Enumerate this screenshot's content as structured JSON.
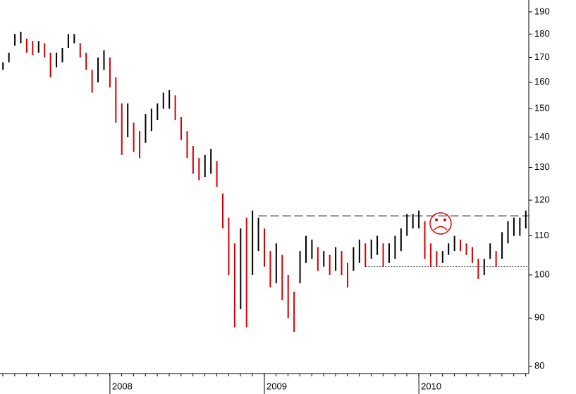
{
  "chart_data": {
    "type": "range",
    "scale": "log",
    "up_color": "#000000",
    "down_color": "#d40000",
    "categories": [
      null,
      null,
      null,
      null,
      null,
      null,
      null,
      null,
      null,
      null,
      null,
      null,
      null,
      null,
      null,
      null,
      null,
      null,
      "2008",
      null,
      null,
      null,
      null,
      null,
      null,
      null,
      null,
      null,
      null,
      null,
      null,
      null,
      null,
      null,
      null,
      null,
      null,
      null,
      null,
      null,
      null,
      null,
      null,
      null,
      "2009",
      null,
      null,
      null,
      null,
      null,
      null,
      null,
      null,
      null,
      null,
      null,
      null,
      null,
      null,
      null,
      null,
      null,
      null,
      null,
      null,
      null,
      null,
      null,
      null,
      null,
      "2010",
      null,
      null,
      null,
      null,
      null,
      null,
      null,
      null,
      null,
      null,
      null,
      null,
      null,
      null,
      null,
      null,
      null,
      null
    ],
    "highs": [
      168,
      172,
      180,
      181,
      178,
      177,
      177,
      176,
      172,
      172,
      174,
      180,
      180,
      176,
      172,
      165,
      170,
      173,
      170,
      162,
      152,
      152,
      145,
      142,
      148,
      150,
      152,
      156,
      157,
      155,
      147,
      142,
      137,
      133,
      134,
      136,
      132,
      122,
      115,
      108,
      112,
      115,
      117,
      115,
      112,
      106,
      108,
      105,
      100,
      96,
      106,
      110,
      109,
      107,
      106,
      105,
      107,
      106,
      103,
      107,
      109,
      108,
      109,
      110,
      108,
      108,
      110,
      112,
      116,
      116,
      117,
      114,
      108,
      106,
      106,
      108,
      110,
      109,
      108,
      107,
      104,
      104,
      108,
      106,
      111,
      114,
      115,
      115,
      117
    ],
    "lows": [
      165,
      168,
      175,
      176,
      172,
      171,
      172,
      170,
      162,
      166,
      168,
      174,
      176,
      170,
      165,
      156,
      160,
      165,
      158,
      145,
      134,
      140,
      135,
      133,
      138,
      142,
      146,
      150,
      150,
      146,
      139,
      133,
      128,
      126,
      127,
      128,
      124,
      112,
      100,
      88,
      92,
      88,
      100,
      106,
      102,
      97,
      98,
      94,
      90,
      87,
      98,
      103,
      104,
      101,
      102,
      100,
      101,
      100,
      97,
      101,
      103,
      102,
      104,
      105,
      102,
      103,
      104,
      106,
      110,
      112,
      112,
      104,
      102,
      102,
      103,
      105,
      106,
      106,
      105,
      103,
      99,
      100,
      104,
      102,
      104,
      108,
      110,
      110,
      112
    ],
    "levels": [
      {
        "value": 115.5,
        "style": "dashed",
        "from": 43
      },
      {
        "value": 102,
        "style": "dotted",
        "from": 61
      }
    ],
    "ylim": [
      78.6,
      195.6
    ],
    "yticks": [
      80,
      90,
      100,
      110,
      120,
      130,
      140,
      150,
      160,
      170,
      180,
      190
    ]
  }
}
